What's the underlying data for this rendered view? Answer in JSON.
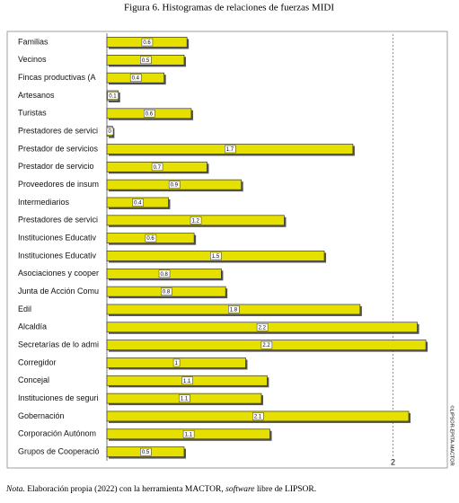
{
  "chart_data": {
    "type": "hbar",
    "title": "Figura 6. Histogramas de relaciones de fuerzas MIDI",
    "categories": [
      "Familias",
      "Vecinos",
      "Fincas productivas (A",
      "Artesanos",
      "Turistas",
      "Prestadores de servici",
      "Prestador de servicios",
      "Prestador de servicio",
      "Proveedores de insum",
      "Intermediarios",
      "Prestadores de servici",
      "Instituciones Educativ",
      "Instituciones Educativ",
      "Asociaciones y cooper",
      "Junta de Acción Comu",
      "Edil",
      "Alcaldía",
      "Secretarías de lo admi",
      "Corregidor",
      "Concejal",
      "Instituciones de seguri",
      "Gobernación",
      "Corporación Autónom",
      "Grupos de Cooperació"
    ],
    "values": [
      0.56,
      0.54,
      0.4,
      0.08,
      0.59,
      0.04,
      1.72,
      0.7,
      0.94,
      0.43,
      1.24,
      0.61,
      1.52,
      0.8,
      0.83,
      1.77,
      2.17,
      2.23,
      0.97,
      1.12,
      1.08,
      2.11,
      1.14,
      0.54
    ],
    "value_labels": [
      "0.6",
      "0.5",
      "0.4",
      "0.1",
      "0.6",
      "0",
      "1.7",
      "0.7",
      "0.9",
      "0.4",
      "1.2",
      "0.6",
      "1.5",
      "0.8",
      "0.8",
      "1.8",
      "2.2",
      "2.2",
      "1",
      "1.1",
      "1.1",
      "2.1",
      "1.1",
      "0.5"
    ],
    "color": "#e6e000",
    "xlim": [
      0,
      2.38
    ],
    "xticks": [
      2
    ],
    "grid": true,
    "side_label": "©LIPSOR-EPITA-MACTOR"
  },
  "note": {
    "label": "Nota.",
    "text1": "Elaboración propia (2022) con la herramienta MACTOR,",
    "text2": "software",
    "text3": "libre de LIPSOR."
  }
}
